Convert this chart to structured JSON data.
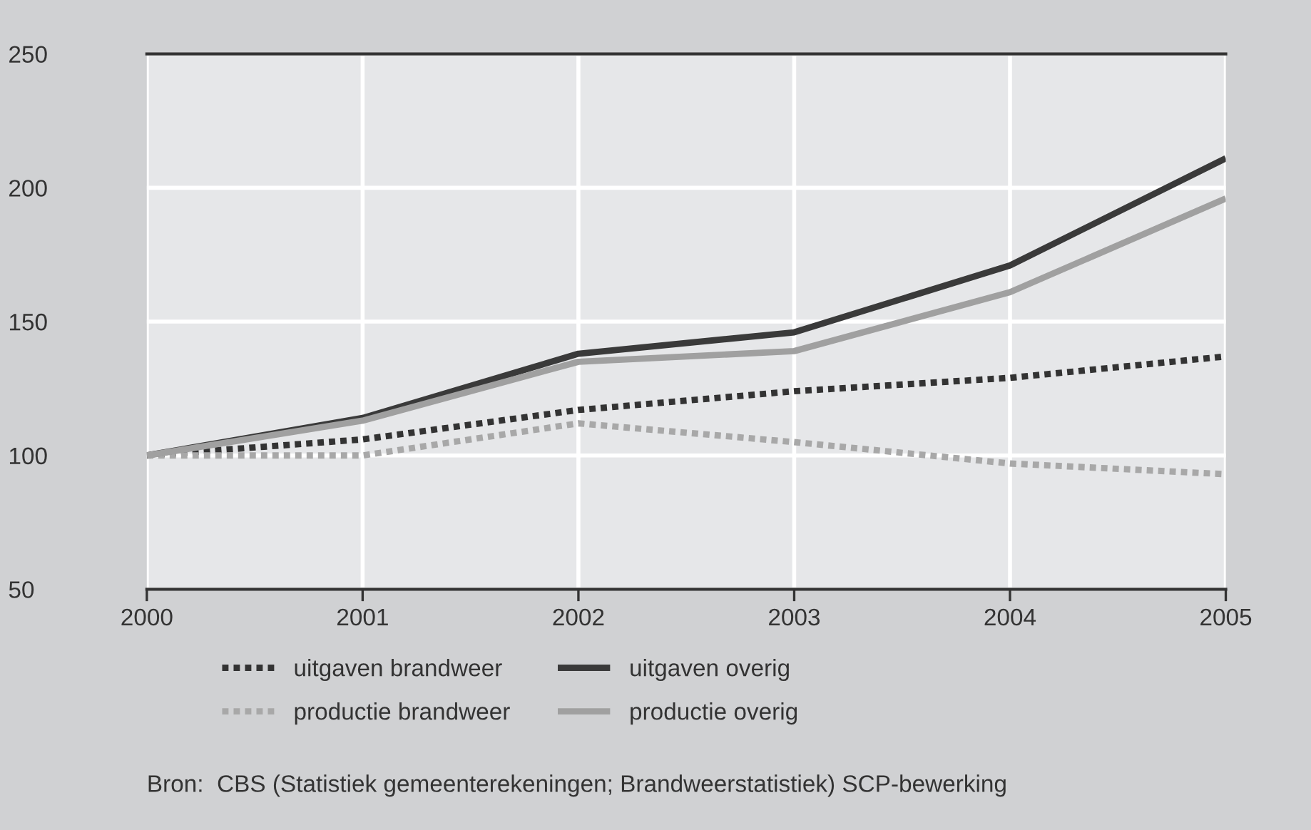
{
  "chart_data": {
    "type": "line",
    "x": [
      2000,
      2001,
      2002,
      2003,
      2004,
      2005
    ],
    "series": [
      {
        "name": "uitgaven brandweer",
        "color": "#333333",
        "line_style": "dotted",
        "values": [
          100,
          106,
          117,
          124,
          129,
          137
        ]
      },
      {
        "name": "productie brandweer",
        "color": "#a8a8a8",
        "line_style": "dotted",
        "values": [
          100,
          100,
          112,
          105,
          97,
          93
        ]
      },
      {
        "name": "uitgaven overig",
        "color": "#3a3a3a",
        "line_style": "solid",
        "values": [
          100,
          114,
          138,
          146,
          171,
          211
        ]
      },
      {
        "name": "productie overig",
        "color": "#a0a0a0",
        "line_style": "solid",
        "values": [
          100,
          113,
          135,
          139,
          161,
          196
        ]
      }
    ],
    "xlim": [
      2000,
      2005
    ],
    "xticks": [
      2000,
      2001,
      2002,
      2003,
      2004,
      2005
    ],
    "ylim": [
      50,
      250
    ],
    "yticks": [
      50,
      100,
      150,
      200,
      250
    ],
    "grid": true,
    "legend": "bottom",
    "marker": "none",
    "annotations": [
      "Bron:  CBS (Statistiek gemeenterekeningen; Brandweerstatistiek) SCP-bewerking"
    ]
  }
}
